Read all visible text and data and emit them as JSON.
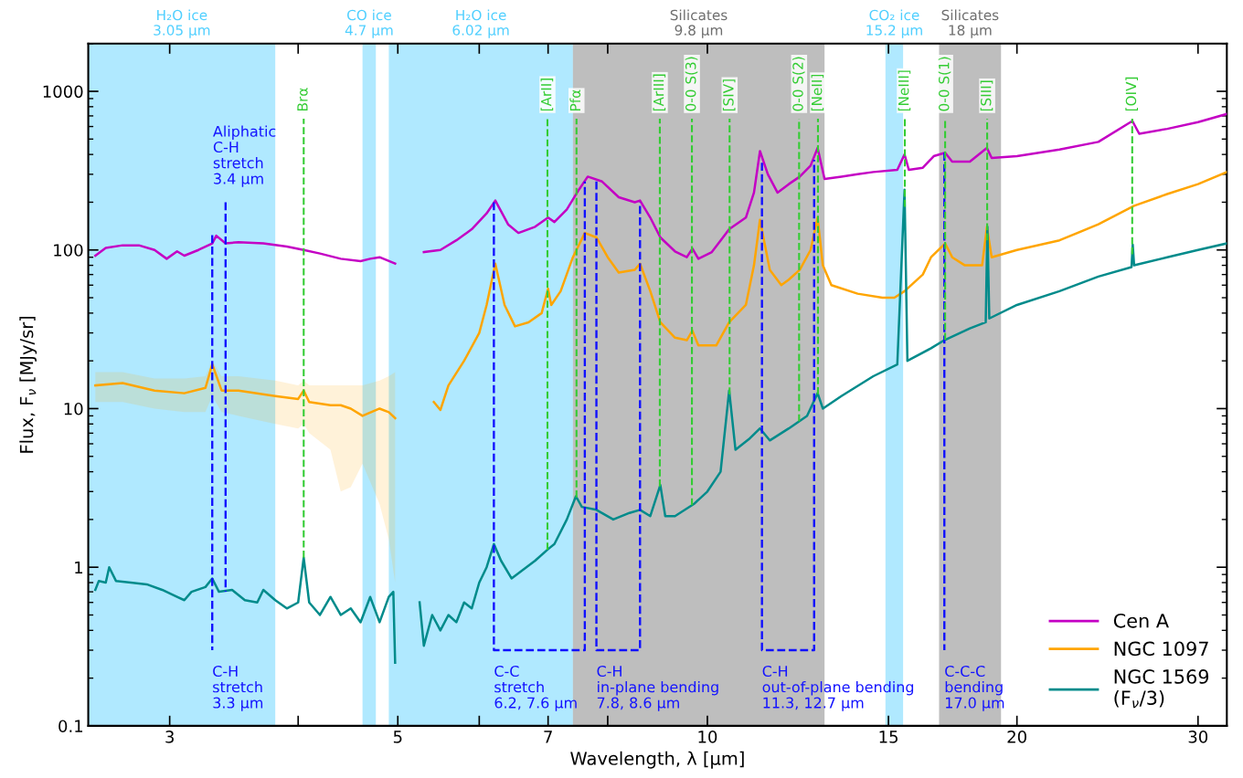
{
  "chart_data": {
    "type": "line",
    "xlabel": "Wavelength, λ [µm]",
    "ylabel": "Flux, F$_{ν}$ [MJy/sr]",
    "log": "xy",
    "xlim": [
      2.5,
      32
    ],
    "ylim": [
      0.1,
      2000
    ],
    "xticks": [
      3,
      {
        "value": 4,
        "label": null
      },
      5,
      {
        "value": 6,
        "label": null
      },
      7,
      {
        "value": 8,
        "label": null
      },
      10,
      15,
      20,
      30
    ],
    "yticks": [
      0.1,
      1,
      10,
      100,
      1000
    ],
    "legend": "bottom right",
    "series": [
      {
        "name": "Cen A",
        "color": "#c400c4",
        "x": [
          2.54,
          2.6,
          2.7,
          2.8,
          2.9,
          2.98,
          3.05,
          3.1,
          3.2,
          3.3,
          3.33,
          3.4,
          3.5,
          3.7,
          3.9,
          4.05,
          4.2,
          4.4,
          4.6,
          4.7,
          4.8,
          4.97,
          5.1,
          5.3,
          5.5,
          5.7,
          5.9,
          6.1,
          6.22,
          6.4,
          6.55,
          6.8,
          7.0,
          7.1,
          7.3,
          7.5,
          7.65,
          7.9,
          8.2,
          8.5,
          8.6,
          8.8,
          9.0,
          9.3,
          9.55,
          9.67,
          9.8,
          10.1,
          10.5,
          10.9,
          11.1,
          11.25,
          11.45,
          11.7,
          12.0,
          12.3,
          12.6,
          12.8,
          13.0,
          13.5,
          14.0,
          14.5,
          15.3,
          15.55,
          15.7,
          16.2,
          16.6,
          17.03,
          17.3,
          18.0,
          18.7,
          18.9,
          20,
          22,
          24,
          25.9,
          26.3,
          28,
          30,
          32
        ],
        "values": [
          92,
          103,
          107,
          107,
          100,
          88,
          98,
          92,
          100,
          110,
          123,
          110,
          112,
          110,
          105,
          100,
          95,
          88,
          85,
          88,
          90,
          82,
          null,
          97,
          100,
          115,
          135,
          170,
          205,
          145,
          128,
          140,
          160,
          150,
          180,
          240,
          290,
          270,
          215,
          200,
          205,
          160,
          120,
          98,
          90,
          102,
          88,
          97,
          135,
          160,
          230,
          420,
          300,
          230,
          260,
          290,
          340,
          440,
          280,
          290,
          300,
          310,
          320,
          400,
          320,
          330,
          390,
          410,
          360,
          360,
          440,
          380,
          390,
          430,
          480,
          650,
          540,
          580,
          640,
          720
        ]
      },
      {
        "name": "NGC 1097",
        "color": "#ffa500",
        "x": [
          2.54,
          2.7,
          2.9,
          3.1,
          3.25,
          3.3,
          3.37,
          3.5,
          3.8,
          4.0,
          4.05,
          4.1,
          4.3,
          4.4,
          4.5,
          4.62,
          4.8,
          4.9,
          4.97,
          5.1,
          5.42,
          5.5,
          5.6,
          5.8,
          6.0,
          6.1,
          6.22,
          6.35,
          6.5,
          6.7,
          6.9,
          7.0,
          7.05,
          7.2,
          7.4,
          7.6,
          7.8,
          8.0,
          8.2,
          8.5,
          8.6,
          8.8,
          9.0,
          9.3,
          9.55,
          9.67,
          9.8,
          10.2,
          10.5,
          10.9,
          11.1,
          11.25,
          11.5,
          11.8,
          12.0,
          12.3,
          12.6,
          12.8,
          12.95,
          13.2,
          14.0,
          14.8,
          15.2,
          15.55,
          16.2,
          16.5,
          17.03,
          17.3,
          17.8,
          18.5,
          18.7,
          18.9,
          20,
          22,
          24,
          26,
          28,
          30,
          32
        ],
        "values": [
          14,
          14.5,
          13,
          12.5,
          13.5,
          19,
          13,
          13,
          12,
          11.5,
          13,
          11,
          10.5,
          10.5,
          10,
          9,
          10,
          9.5,
          8.7,
          null,
          11,
          9.8,
          14,
          20,
          30,
          45,
          82,
          45,
          33,
          35,
          40,
          57,
          45,
          55,
          90,
          128,
          120,
          90,
          72,
          75,
          82,
          55,
          35,
          28,
          27,
          31,
          25,
          25,
          35,
          45,
          80,
          155,
          75,
          60,
          65,
          75,
          100,
          160,
          80,
          60,
          53,
          50,
          50,
          55,
          70,
          90,
          110,
          90,
          80,
          80,
          140,
          90,
          100,
          115,
          145,
          190,
          225,
          260,
          310
        ],
        "upper": [
          17,
          17,
          15.5,
          15.5,
          16,
          20,
          16,
          16,
          15,
          14,
          15,
          14,
          14,
          14,
          14,
          14,
          15,
          16,
          17,
          null,
          null,
          null,
          null,
          null,
          null,
          null,
          null,
          null,
          null,
          null,
          null,
          null,
          null,
          null,
          null,
          null,
          null,
          null,
          null,
          null,
          null,
          null,
          null,
          null,
          null,
          null,
          null,
          null,
          null,
          null,
          null,
          null,
          null,
          null,
          null,
          null,
          null,
          null,
          null,
          null,
          null,
          null,
          null,
          null,
          null,
          null,
          null,
          null,
          null,
          null,
          null,
          null,
          null,
          null,
          null,
          null,
          null,
          null,
          null
        ],
        "lower": [
          11,
          11,
          10,
          9.5,
          9.5,
          12,
          9.5,
          9,
          8,
          7.5,
          8,
          7,
          5.5,
          3,
          3.2,
          4.5,
          2.5,
          1.5,
          0.8,
          null,
          null,
          null,
          null,
          null,
          null,
          null,
          null,
          null,
          null,
          null,
          null,
          null,
          null,
          null,
          null,
          null,
          null,
          null,
          null,
          null,
          null,
          null,
          null,
          null,
          null,
          null,
          null,
          null,
          null,
          null,
          null,
          null,
          null,
          null,
          null,
          null,
          null,
          null,
          null,
          null,
          null,
          null,
          null,
          null,
          null,
          null,
          null,
          null,
          null,
          null,
          null,
          null,
          null,
          null,
          null,
          null,
          null,
          null,
          null
        ]
      },
      {
        "name": "NGC 1569\n(F$_{ν}$/3)",
        "color": "#008b8b",
        "x": [
          2.54,
          2.56,
          2.6,
          2.62,
          2.66,
          2.75,
          2.85,
          2.95,
          3.05,
          3.1,
          3.15,
          3.25,
          3.3,
          3.35,
          3.45,
          3.55,
          3.65,
          3.7,
          3.8,
          3.9,
          4.0,
          4.05,
          4.1,
          4.2,
          4.3,
          4.4,
          4.5,
          4.6,
          4.7,
          4.8,
          4.9,
          4.95,
          4.97,
          5.1,
          5.25,
          5.3,
          5.4,
          5.5,
          5.6,
          5.7,
          5.8,
          5.9,
          6.0,
          6.1,
          6.2,
          6.3,
          6.45,
          6.6,
          6.8,
          7.0,
          7.1,
          7.3,
          7.45,
          7.55,
          7.8,
          8.1,
          8.4,
          8.6,
          8.8,
          9.0,
          9.1,
          9.3,
          9.7,
          10.0,
          10.3,
          10.5,
          10.65,
          11.0,
          11.25,
          11.5,
          12.0,
          12.5,
          12.8,
          12.95,
          13.5,
          14.5,
          15.3,
          15.55,
          15.65,
          16.5,
          17.0,
          18.0,
          18.65,
          18.72,
          18.8,
          20,
          22,
          24,
          25.85,
          25.92,
          26.0,
          28,
          30,
          32
        ],
        "values": [
          0.72,
          0.82,
          0.8,
          1.0,
          0.82,
          0.8,
          0.78,
          0.72,
          0.65,
          0.62,
          0.7,
          0.75,
          0.85,
          0.7,
          0.72,
          0.62,
          0.6,
          0.72,
          0.62,
          0.55,
          0.6,
          1.15,
          0.6,
          0.5,
          0.65,
          0.5,
          0.55,
          0.45,
          0.65,
          0.45,
          0.65,
          0.7,
          0.25,
          null,
          0.6,
          0.32,
          0.5,
          0.4,
          0.5,
          0.45,
          0.6,
          0.55,
          0.8,
          1.0,
          1.4,
          1.1,
          0.85,
          0.95,
          1.1,
          1.3,
          1.4,
          2.0,
          2.8,
          2.4,
          2.3,
          2.0,
          2.2,
          2.3,
          2.1,
          3.3,
          2.1,
          2.1,
          2.5,
          3.0,
          4.0,
          13,
          5.5,
          6.5,
          7.5,
          6.3,
          7.5,
          9,
          12.5,
          10,
          12,
          16,
          19,
          240,
          20,
          24,
          27,
          32,
          35,
          140,
          37,
          45,
          55,
          68,
          78,
          108,
          80,
          90,
          100,
          110
        ]
      },
      {
        "color": "#1010ff",
        "line_style": "dashed",
        "x": [
          3.3,
          3.3
        ],
        "values": [
          124,
          0.3
        ]
      },
      {
        "color": "#1010ff",
        "line_style": "dashed",
        "x": [
          3.4,
          3.4
        ],
        "values": [
          200,
          0.7
        ]
      },
      {
        "color": "#1010ff",
        "line_style": "dashed",
        "x": [
          6.2,
          6.2,
          7.6,
          7.6
        ],
        "values": [
          200,
          0.3,
          0.3,
          270
        ]
      },
      {
        "color": "#1010ff",
        "line_style": "dashed",
        "x": [
          7.8,
          7.8,
          8.6,
          8.6
        ],
        "values": [
          270,
          0.3,
          0.3,
          200
        ]
      },
      {
        "color": "#1010ff",
        "line_style": "dashed",
        "x": [
          11.3,
          11.3,
          12.7,
          12.7
        ],
        "values": [
          355,
          0.3,
          0.3,
          370
        ]
      },
      {
        "color": "#1010ff",
        "line_style": "dashed",
        "x": [
          17.0,
          17.0
        ],
        "values": [
          410,
          0.3
        ]
      }
    ],
    "bands": [
      {
        "axis": "x",
        "from": 2.5,
        "to": 3.8,
        "label": "H₂O ice\n3.05 µm",
        "color": "#4fcfff"
      },
      {
        "axis": "x",
        "from": 4.62,
        "to": 4.76,
        "label": "CO ice\n4.7 µm",
        "color": "#4fcfff"
      },
      {
        "axis": "x",
        "from": 4.9,
        "to": 7.4,
        "label": "H₂O ice\n6.02 µm",
        "color": "#4fcfff"
      },
      {
        "axis": "x",
        "from": 7.4,
        "to": 13,
        "label": "Silicates\n9.8 µm",
        "color": "#6e6e6e"
      },
      {
        "axis": "x",
        "from": 14.9,
        "to": 15.5,
        "label": "CO₂ ice\n15.2 µm",
        "color": "#4fcfff"
      },
      {
        "axis": "x",
        "from": 16.8,
        "to": 19.3,
        "label": "Silicates\n18 µm",
        "color": "#6e6e6e"
      }
    ],
    "ref_lines": [
      {
        "axis": "x",
        "value": 4.05,
        "label": "Brα",
        "color": "#33cc33",
        "line_style": "dashed"
      },
      {
        "axis": "x",
        "value": 6.99,
        "label": "[ArII]",
        "color": "#33cc33",
        "line_style": "dashed"
      },
      {
        "axis": "x",
        "value": 7.46,
        "label": "Pfα",
        "color": "#33cc33",
        "line_style": "dashed"
      },
      {
        "axis": "x",
        "value": 8.99,
        "label": "[ArIII]",
        "color": "#33cc33",
        "line_style": "dashed"
      },
      {
        "axis": "x",
        "value": 9.66,
        "label": "0-0 S(3)",
        "color": "#33cc33",
        "line_style": "dashed"
      },
      {
        "axis": "x",
        "value": 10.51,
        "label": "[SIV]",
        "color": "#33cc33",
        "line_style": "dashed"
      },
      {
        "axis": "x",
        "value": 12.28,
        "label": "0-0 S(2)",
        "color": "#33cc33",
        "line_style": "dashed"
      },
      {
        "axis": "x",
        "value": 12.81,
        "label": "[NeII]",
        "color": "#33cc33",
        "line_style": "dashed"
      },
      {
        "axis": "x",
        "value": 15.56,
        "label": "[NeIII]",
        "color": "#33cc33",
        "line_style": "dashed"
      },
      {
        "axis": "x",
        "value": 17.03,
        "label": "0-0 S(1)",
        "color": "#33cc33",
        "line_style": "dashed"
      },
      {
        "axis": "x",
        "value": 18.71,
        "label": "[SIII]",
        "color": "#33cc33",
        "line_style": "dashed"
      },
      {
        "axis": "x",
        "value": 25.89,
        "label": "[OIV]",
        "color": "#33cc33",
        "line_style": "dashed"
      }
    ],
    "annotations": [
      {
        "text": "Aliphatic\nC-H\nstretch\n3.4 µm",
        "x": 3.4,
        "y": 200
      },
      {
        "text": "C-H\nstretch\n3.3 µm",
        "x": 3.3,
        "y": 0.3
      },
      {
        "text": "C-C\nstretch\n6.2, 7.6 µm",
        "x": 6.2,
        "y": 0.3
      },
      {
        "text": "C-H\nin-plane bending\n7.8, 8.6 µm",
        "x": 7.8,
        "y": 0.3
      },
      {
        "text": "C-H\nout-of-plane bending\n11.3, 12.7 µm",
        "x": 11.3,
        "y": 0.3
      },
      {
        "text": "C-C-C\nbending\n17.0 µm",
        "x": 17.0,
        "y": 0.3
      }
    ]
  }
}
